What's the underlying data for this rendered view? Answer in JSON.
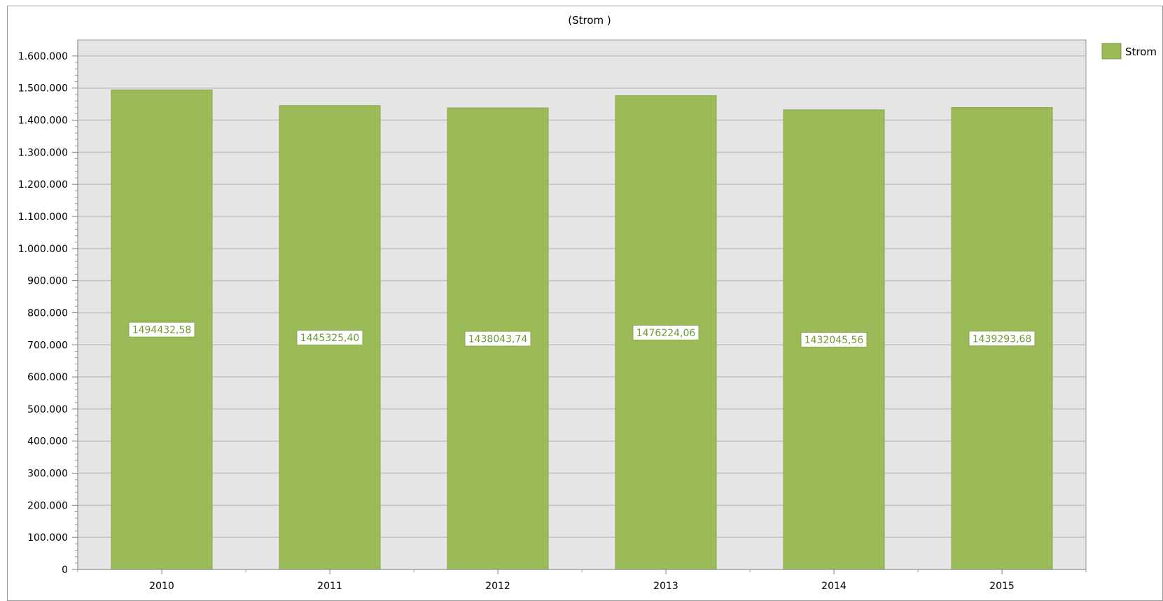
{
  "chart_data": {
    "type": "bar",
    "title": "(Strom )",
    "categories": [
      "2010",
      "2011",
      "2012",
      "2013",
      "2014",
      "2015"
    ],
    "series": [
      {
        "name": "Strom",
        "values": [
          1494432.58,
          1445325.4,
          1438043.74,
          1476224.06,
          1432045.56,
          1439293.68
        ],
        "data_labels": [
          "1494432,58",
          "1445325,40",
          "1438043,74",
          "1476224,06",
          "1432045,56",
          "1439293,68"
        ],
        "color": "#9bbb59"
      }
    ],
    "ylim": [
      0,
      1650000
    ],
    "y_ticks": [
      0,
      100000,
      200000,
      300000,
      400000,
      500000,
      600000,
      700000,
      800000,
      900000,
      1000000,
      1100000,
      1200000,
      1300000,
      1400000,
      1500000,
      1600000
    ],
    "y_tick_labels": [
      "0",
      "100.000",
      "200.000",
      "300.000",
      "400.000",
      "500.000",
      "600.000",
      "700.000",
      "800.000",
      "900.000",
      "1.000.000",
      "1.100.000",
      "1.200.000",
      "1.300.000",
      "1.400.000",
      "1.500.000",
      "1.600.000"
    ],
    "xlabel": "",
    "ylabel": "",
    "grid": true,
    "legend_position": "top-right",
    "plot_background": "#e5e5e5",
    "gridline_color": "#c4c4c4"
  }
}
